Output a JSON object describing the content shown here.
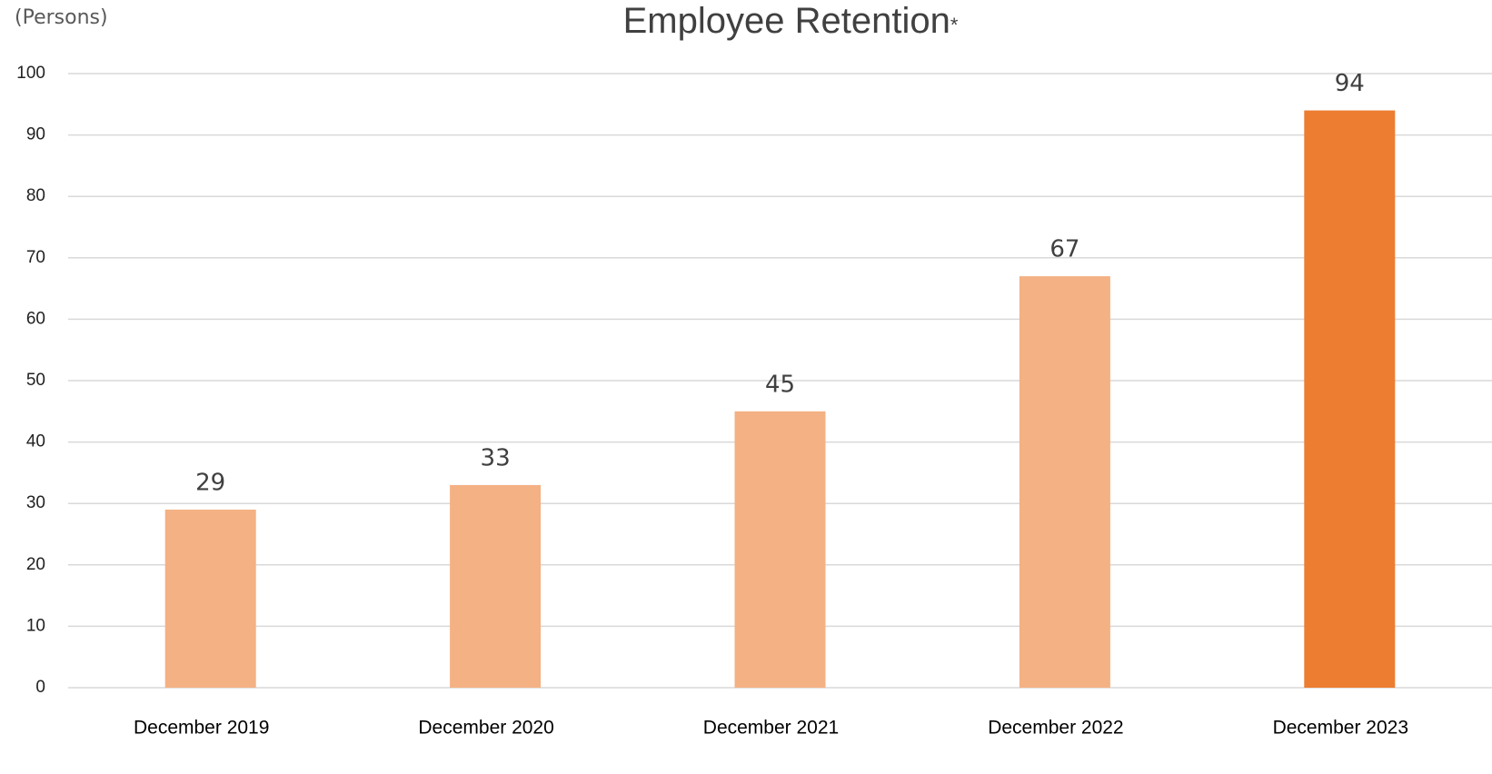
{
  "chart_data": {
    "type": "bar",
    "title": "Employee Retention",
    "title_mark": "*",
    "y_label": "(Persons)",
    "categories": [
      "December 2019",
      "December 2020",
      "December 2021",
      "December 2022",
      "December 2023"
    ],
    "values": [
      29,
      33,
      45,
      67,
      94
    ],
    "colors": [
      "#f4b183",
      "#f4b183",
      "#f4b183",
      "#f4b183",
      "#ed7d31"
    ],
    "ylim": [
      0,
      100
    ],
    "yticks": [
      0,
      10,
      20,
      30,
      40,
      50,
      60,
      70,
      80,
      90,
      100
    ],
    "grid": true
  }
}
